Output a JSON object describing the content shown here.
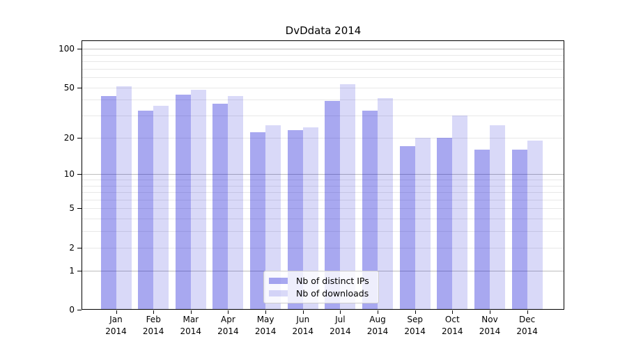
{
  "chart_data": {
    "type": "bar",
    "title": "DvDdata 2014",
    "categories": [
      "Jan",
      "Feb",
      "Mar",
      "Apr",
      "May",
      "Jun",
      "Jul",
      "Aug",
      "Sep",
      "Oct",
      "Nov",
      "Dec"
    ],
    "year": "2014",
    "series": [
      {
        "name": "Nb of distinct IPs",
        "color": "rgba(0,0,210,0.34)",
        "values": [
          43,
          33,
          44,
          37,
          22,
          23,
          39,
          33,
          17,
          20,
          16,
          16
        ]
      },
      {
        "name": "Nb of downloads",
        "color": "rgba(0,0,210,0.15)",
        "values": [
          51,
          36,
          48,
          43,
          25,
          24,
          53,
          41,
          20,
          30,
          25,
          19
        ]
      }
    ],
    "xlabel": "",
    "ylabel": "",
    "yscale": "log10(value+1)",
    "ylim": [
      0,
      115
    ],
    "yticks": [
      100,
      50,
      20,
      10,
      5,
      2,
      1,
      0
    ],
    "major_gridlines": [
      100,
      10,
      1
    ],
    "minor_gridlines": [
      2,
      3,
      4,
      5,
      6,
      7,
      8,
      9,
      20,
      30,
      40,
      50,
      60,
      70,
      80,
      90
    ],
    "grid": true,
    "legend_position": "lower center",
    "style": {
      "background": "#ffffff",
      "major_grid_color": "#bdbdbd",
      "minor_grid_color": "#e8e8e8",
      "spine_color": "#000000"
    }
  }
}
